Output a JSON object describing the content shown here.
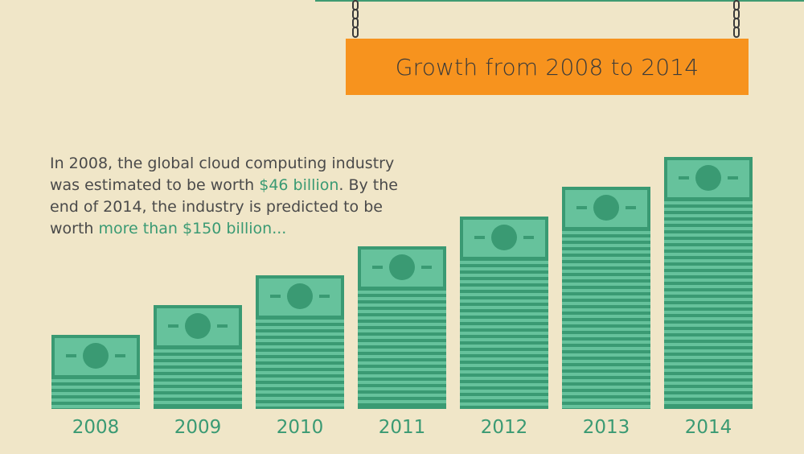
{
  "header": {
    "title": "Growth from 2008 to 2014"
  },
  "intro": {
    "part1": "In 2008, the global cloud computing industry was estimated to be worth ",
    "highlight1": "$46 billion",
    "part2": ". By the end of 2014, the industry is predicted to be worth ",
    "highlight2": "more than $150 billion..."
  },
  "colors": {
    "background": "#f0e6c8",
    "accent": "#f7931e",
    "bill_light": "#66c29c",
    "bill_dark": "#3a9a73",
    "text_green": "#3a9a73"
  },
  "chart_data": {
    "type": "bar",
    "categories": [
      "2008",
      "2009",
      "2010",
      "2011",
      "2012",
      "2013",
      "2014"
    ],
    "title": "Growth from 2008 to 2014",
    "xlabel": "",
    "ylabel": "",
    "annotations": [
      "$46 billion",
      "more than $150 billion..."
    ]
  }
}
